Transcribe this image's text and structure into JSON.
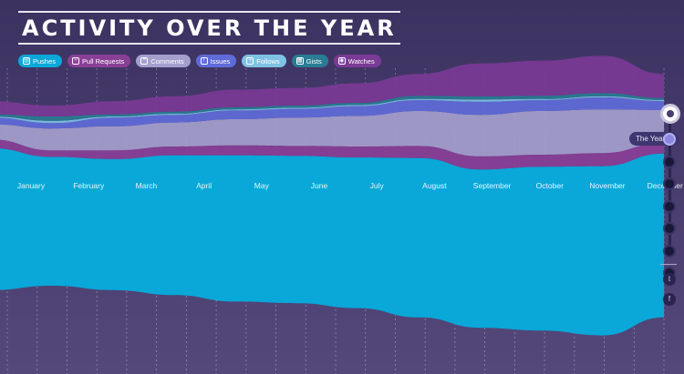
{
  "title": "ACTIVITY OVER THE YEAR",
  "legend": [
    {
      "label": "Pushes",
      "color": "#09a8d9",
      "icon": "repo-push-icon"
    },
    {
      "label": "Pull Requests",
      "color": "#8a3f97",
      "icon": "pull-request-icon"
    },
    {
      "label": "Comments",
      "color": "#a59fce",
      "icon": "comment-icon"
    },
    {
      "label": "Issues",
      "color": "#5f6bd9",
      "icon": "issue-icon"
    },
    {
      "label": "Follows",
      "color": "#7fc2e3",
      "icon": "follow-icon"
    },
    {
      "label": "Gists",
      "color": "#287c93",
      "icon": "gist-icon"
    },
    {
      "label": "Watches",
      "color": "#7a3a96",
      "icon": "eye-icon"
    }
  ],
  "nav": {
    "year_label": "The Year",
    "icons": [
      "github-icon",
      "twitter-icon",
      "facebook-icon"
    ],
    "twitter_glyph": "t",
    "facebook_glyph": "f",
    "dot_count": 7,
    "active_index": 0
  },
  "chart_data": {
    "type": "area",
    "stacked": true,
    "centered": true,
    "months": [
      "January",
      "February",
      "March",
      "April",
      "May",
      "June",
      "July",
      "August",
      "September",
      "October",
      "November",
      "December"
    ],
    "series": [
      {
        "name": "Pushes",
        "color": "#09a8d9",
        "values": [
          130,
          118,
          120,
          128,
          134,
          135,
          138,
          146,
          145,
          150,
          155,
          150
        ]
      },
      {
        "name": "Pull Requests",
        "color": "#8a3f97",
        "values": [
          8,
          6,
          8,
          8,
          9,
          9,
          10,
          11,
          12,
          11,
          12,
          10
        ]
      },
      {
        "name": "Comments",
        "color": "#a59fce",
        "values": [
          14,
          20,
          22,
          22,
          24,
          26,
          28,
          32,
          38,
          40,
          40,
          30
        ]
      },
      {
        "name": "Issues",
        "color": "#5f6bd9",
        "values": [
          6,
          5,
          8,
          7,
          8,
          8,
          9,
          10,
          12,
          10,
          11,
          8
        ]
      },
      {
        "name": "Follows",
        "color": "#7fc2e3",
        "values": [
          1,
          2,
          1,
          1,
          1,
          1,
          1,
          1,
          2,
          1,
          1,
          1
        ]
      },
      {
        "name": "Gists",
        "color": "#287c93",
        "values": [
          2,
          4,
          2,
          2,
          2,
          2,
          2,
          3,
          3,
          3,
          3,
          2
        ]
      },
      {
        "name": "Watches",
        "color": "#7a3a96",
        "values": [
          12,
          10,
          12,
          14,
          16,
          16,
          18,
          20,
          30,
          32,
          34,
          22
        ]
      }
    ],
    "grid": true
  }
}
